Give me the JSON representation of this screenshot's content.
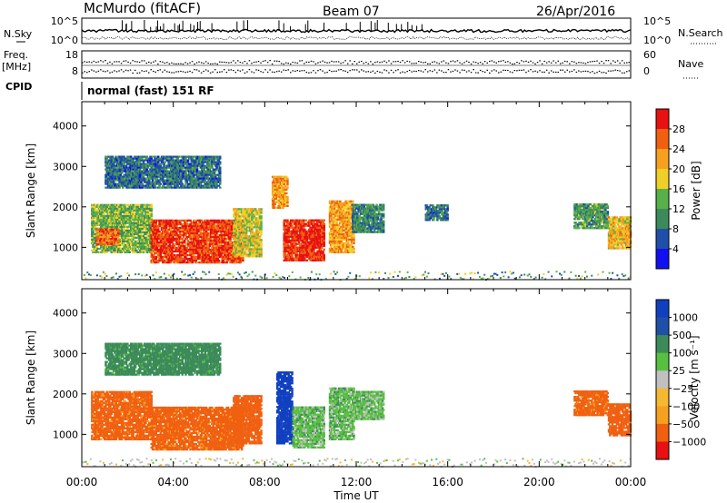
{
  "header": {
    "station": "McMurdo (fitACF)",
    "beam": "Beam 07",
    "date": "26/Apr/2016"
  },
  "status_panel": {
    "left_labels": {
      "nsky": "N.Sky",
      "freq": "Freq.",
      "freq_unit": "[MHz]",
      "cpid": "CPID"
    },
    "right_labels": {
      "nsearch": "N.Search",
      "nave": "Nave"
    },
    "noise_ticks": [
      "10^5",
      "10^0"
    ],
    "freq_ticks": [
      "18",
      "8"
    ],
    "nave_ticks": [
      "60",
      "0"
    ],
    "cpid_text": "normal (fast) 151 RF"
  },
  "colors": {
    "power_scale": [
      "#1010f0",
      "#1f4fa8",
      "#3c8a5a",
      "#58b04a",
      "#f0d028",
      "#f7a020",
      "#f06010",
      "#e81010"
    ],
    "velocity_scale": [
      "#e81010",
      "#f06010",
      "#f7a020",
      "#f5b830",
      "#c0c0c0",
      "#58c040",
      "#3c8a5a",
      "#1f4fa8",
      "#1040c0"
    ]
  },
  "chart_data": [
    {
      "type": "heatmap",
      "panel": "power",
      "ylabel": "Slant Range [km]",
      "y_ticks": [
        "4000",
        "3000",
        "2000",
        "1000"
      ],
      "ylim": [
        200,
        4600
      ],
      "x_ticks": [
        "00:00",
        "04:00",
        "08:00",
        "12:00",
        "16:00",
        "20:00",
        "00:00"
      ],
      "xlim_hours": [
        0,
        24
      ],
      "colorbar_label": "Power [dB]",
      "colorbar_ticks": [
        "28",
        "24",
        "20",
        "16",
        "12",
        "8",
        "4"
      ],
      "range": [
        0,
        32
      ],
      "echo_regions": [
        {
          "t0": 0.4,
          "t1": 3.0,
          "r0": 900,
          "r1": 2100,
          "power": 14
        },
        {
          "t0": 0.6,
          "t1": 1.6,
          "r0": 1100,
          "r1": 1500,
          "power": 26
        },
        {
          "t0": 3.0,
          "t1": 7.0,
          "r0": 650,
          "r1": 1700,
          "power": 28
        },
        {
          "t0": 6.6,
          "t1": 7.8,
          "r0": 800,
          "r1": 2000,
          "power": 18
        },
        {
          "t0": 8.3,
          "t1": 9.0,
          "r0": 2000,
          "r1": 2800,
          "power": 22
        },
        {
          "t0": 8.8,
          "t1": 10.6,
          "r0": 700,
          "r1": 1700,
          "power": 29
        },
        {
          "t0": 10.8,
          "t1": 11.9,
          "r0": 900,
          "r1": 2200,
          "power": 22
        },
        {
          "t0": 11.8,
          "t1": 13.2,
          "r0": 1400,
          "r1": 2100,
          "power": 10
        },
        {
          "t0": 1.0,
          "t1": 6.0,
          "r0": 2500,
          "r1": 3300,
          "power": 8
        },
        {
          "t0": 15.0,
          "t1": 16.0,
          "r0": 1700,
          "r1": 2100,
          "power": 8
        },
        {
          "t0": 21.5,
          "t1": 23.0,
          "r0": 1500,
          "r1": 2100,
          "power": 12
        },
        {
          "t0": 23.0,
          "t1": 24.0,
          "r0": 1000,
          "r1": 1800,
          "power": 20
        }
      ]
    },
    {
      "type": "heatmap",
      "panel": "velocity",
      "ylabel": "Slant Range [km]",
      "y_ticks": [
        "4000",
        "3000",
        "2000",
        "1000"
      ],
      "ylim": [
        200,
        4600
      ],
      "x_ticks": [
        "00:00",
        "04:00",
        "08:00",
        "12:00",
        "16:00",
        "20:00",
        "00:00"
      ],
      "xlim_hours": [
        0,
        24
      ],
      "xlabel": "Time UT",
      "colorbar_label": "Velocity [m s⁻¹]",
      "colorbar_ticks": [
        "1000",
        "500",
        "100",
        "25",
        "−25",
        "−100",
        "−500",
        "−1000"
      ],
      "range": [
        -1000,
        1000
      ],
      "echo_regions": [
        {
          "t0": 0.4,
          "t1": 3.0,
          "r0": 900,
          "r1": 2100,
          "velocity": -150
        },
        {
          "t0": 3.0,
          "t1": 7.0,
          "r0": 650,
          "r1": 1700,
          "velocity": -150
        },
        {
          "t0": 6.6,
          "t1": 7.8,
          "r0": 800,
          "r1": 2000,
          "velocity": -200
        },
        {
          "t0": 8.5,
          "t1": 9.2,
          "r0": 800,
          "r1": 2600,
          "velocity": 800
        },
        {
          "t0": 9.2,
          "t1": 10.6,
          "r0": 700,
          "r1": 1700,
          "velocity": 60
        },
        {
          "t0": 10.8,
          "t1": 11.9,
          "r0": 900,
          "r1": 2200,
          "velocity": 60
        },
        {
          "t0": 11.8,
          "t1": 13.2,
          "r0": 1400,
          "r1": 2100,
          "velocity": 60
        },
        {
          "t0": 1.0,
          "t1": 6.0,
          "r0": 2500,
          "r1": 3300,
          "velocity": 150
        },
        {
          "t0": 21.5,
          "t1": 23.0,
          "r0": 1500,
          "r1": 2100,
          "velocity": -150
        },
        {
          "t0": 23.0,
          "t1": 24.0,
          "r0": 1000,
          "r1": 1800,
          "velocity": -200
        }
      ]
    }
  ]
}
